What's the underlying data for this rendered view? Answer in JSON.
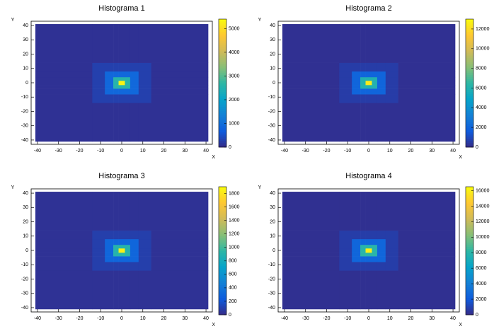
{
  "chart_data": [
    {
      "type": "heatmap",
      "title": "Histograma 1",
      "x_label": "X",
      "y_label": "Y",
      "xlim": [
        -43,
        43
      ],
      "ylim": [
        -43,
        43
      ],
      "xticks": [
        -40,
        -30,
        -20,
        -10,
        0,
        10,
        20,
        30,
        40
      ],
      "yticks": [
        -40,
        -30,
        -20,
        -10,
        0,
        10,
        20,
        30,
        40
      ],
      "xbins": [
        -41,
        -14,
        -8,
        -4,
        -1.5,
        1.5,
        4,
        8,
        14,
        41
      ],
      "ybins": [
        -41,
        -14,
        -8,
        -4,
        -1.5,
        1.5,
        4,
        8,
        14,
        41
      ],
      "zlim": [
        0,
        5400
      ],
      "zticks": [
        0,
        1000,
        2000,
        3000,
        4000,
        5000
      ],
      "colormap": [
        "#352a87",
        "#0f5cdd",
        "#1481d6",
        "#06a4ca",
        "#2eb7a4",
        "#87bf77",
        "#d1bb59",
        "#fec832",
        "#f9fb0e"
      ],
      "z": [
        [
          100,
          100,
          100,
          100,
          100,
          100,
          100,
          100,
          100
        ],
        [
          100,
          300,
          300,
          300,
          300,
          300,
          300,
          300,
          100
        ],
        [
          100,
          300,
          900,
          900,
          900,
          900,
          900,
          300,
          100
        ],
        [
          100,
          300,
          900,
          2600,
          2600,
          2600,
          900,
          300,
          100
        ],
        [
          100,
          300,
          900,
          2600,
          5300,
          2600,
          900,
          300,
          100
        ],
        [
          100,
          300,
          900,
          2600,
          2600,
          2600,
          900,
          300,
          100
        ],
        [
          100,
          300,
          900,
          900,
          900,
          900,
          900,
          300,
          100
        ],
        [
          100,
          300,
          300,
          300,
          300,
          300,
          300,
          300,
          100
        ],
        [
          100,
          100,
          100,
          100,
          100,
          100,
          100,
          100,
          100
        ]
      ]
    },
    {
      "type": "heatmap",
      "title": "Histograma 2",
      "x_label": "X",
      "y_label": "Y",
      "xlim": [
        -43,
        43
      ],
      "ylim": [
        -43,
        43
      ],
      "xticks": [
        -40,
        -30,
        -20,
        -10,
        0,
        10,
        20,
        30,
        40
      ],
      "yticks": [
        -40,
        -30,
        -20,
        -10,
        0,
        10,
        20,
        30,
        40
      ],
      "xbins": [
        -41,
        -14,
        -8,
        -4,
        -1.5,
        1.5,
        4,
        8,
        14,
        41
      ],
      "ybins": [
        -41,
        -14,
        -8,
        -4,
        -1.5,
        1.5,
        4,
        8,
        14,
        41
      ],
      "zlim": [
        0,
        13000
      ],
      "zticks": [
        0,
        2000,
        4000,
        6000,
        8000,
        10000,
        12000
      ],
      "colormap": [
        "#352a87",
        "#0f5cdd",
        "#1481d6",
        "#06a4ca",
        "#2eb7a4",
        "#87bf77",
        "#d1bb59",
        "#fec832",
        "#f9fb0e"
      ],
      "z": [
        [
          200,
          200,
          200,
          200,
          200,
          200,
          200,
          200,
          200
        ],
        [
          200,
          600,
          600,
          600,
          600,
          600,
          600,
          600,
          200
        ],
        [
          200,
          600,
          2000,
          2000,
          2000,
          2000,
          2000,
          600,
          200
        ],
        [
          200,
          600,
          2000,
          6000,
          6000,
          6000,
          2000,
          600,
          200
        ],
        [
          200,
          600,
          2000,
          6000,
          12500,
          6000,
          2000,
          600,
          200
        ],
        [
          200,
          600,
          2000,
          6000,
          6000,
          6000,
          2000,
          600,
          200
        ],
        [
          200,
          600,
          2000,
          2000,
          2000,
          2000,
          2000,
          600,
          200
        ],
        [
          200,
          600,
          600,
          600,
          600,
          600,
          600,
          600,
          200
        ],
        [
          200,
          200,
          200,
          200,
          200,
          200,
          200,
          200,
          200
        ]
      ]
    },
    {
      "type": "heatmap",
      "title": "Histograma 3",
      "x_label": "X",
      "y_label": "Y",
      "xlim": [
        -43,
        43
      ],
      "ylim": [
        -43,
        43
      ],
      "xticks": [
        -40,
        -30,
        -20,
        -10,
        0,
        10,
        20,
        30,
        40
      ],
      "yticks": [
        -40,
        -30,
        -20,
        -10,
        0,
        10,
        20,
        30,
        40
      ],
      "xbins": [
        -41,
        -14,
        -8,
        -4,
        -1.5,
        1.5,
        4,
        8,
        14,
        41
      ],
      "ybins": [
        -41,
        -14,
        -8,
        -4,
        -1.5,
        1.5,
        4,
        8,
        14,
        41
      ],
      "zlim": [
        0,
        1900
      ],
      "zticks": [
        0,
        200,
        400,
        600,
        800,
        1000,
        1200,
        1400,
        1600,
        1800
      ],
      "colormap": [
        "#352a87",
        "#0f5cdd",
        "#1481d6",
        "#06a4ca",
        "#2eb7a4",
        "#87bf77",
        "#d1bb59",
        "#fec832",
        "#f9fb0e"
      ],
      "z": [
        [
          40,
          40,
          40,
          40,
          40,
          40,
          40,
          40,
          40
        ],
        [
          40,
          100,
          100,
          100,
          100,
          100,
          100,
          100,
          40
        ],
        [
          40,
          100,
          300,
          300,
          300,
          300,
          300,
          100,
          40
        ],
        [
          40,
          100,
          300,
          900,
          900,
          900,
          300,
          100,
          40
        ],
        [
          40,
          100,
          300,
          900,
          1850,
          900,
          300,
          100,
          40
        ],
        [
          40,
          100,
          300,
          900,
          900,
          900,
          300,
          100,
          40
        ],
        [
          40,
          100,
          300,
          300,
          300,
          300,
          300,
          100,
          40
        ],
        [
          40,
          100,
          100,
          100,
          100,
          100,
          100,
          100,
          40
        ],
        [
          40,
          40,
          40,
          40,
          40,
          40,
          40,
          40,
          40
        ]
      ]
    },
    {
      "type": "heatmap",
      "title": "Histograma 4",
      "x_label": "X",
      "y_label": "Y",
      "xlim": [
        -43,
        43
      ],
      "ylim": [
        -43,
        43
      ],
      "xticks": [
        -40,
        -30,
        -20,
        -10,
        0,
        10,
        20,
        30,
        40
      ],
      "yticks": [
        -40,
        -30,
        -20,
        -10,
        0,
        10,
        20,
        30,
        40
      ],
      "xbins": [
        -41,
        -14,
        -8,
        -4,
        -1.5,
        1.5,
        4,
        8,
        14,
        41
      ],
      "ybins": [
        -41,
        -14,
        -8,
        -4,
        -1.5,
        1.5,
        4,
        8,
        14,
        41
      ],
      "zlim": [
        0,
        16500
      ],
      "zticks": [
        0,
        2000,
        4000,
        6000,
        8000,
        10000,
        12000,
        14000,
        16000
      ],
      "colormap": [
        "#352a87",
        "#0f5cdd",
        "#1481d6",
        "#06a4ca",
        "#2eb7a4",
        "#87bf77",
        "#d1bb59",
        "#fec832",
        "#f9fb0e"
      ],
      "z": [
        [
          250,
          250,
          250,
          250,
          250,
          250,
          250,
          250,
          250
        ],
        [
          250,
          800,
          800,
          800,
          800,
          800,
          800,
          800,
          250
        ],
        [
          250,
          800,
          2600,
          2600,
          2600,
          2600,
          2600,
          800,
          250
        ],
        [
          250,
          800,
          2600,
          8000,
          8000,
          8000,
          2600,
          800,
          250
        ],
        [
          250,
          800,
          2600,
          8000,
          16000,
          8000,
          2600,
          800,
          250
        ],
        [
          250,
          800,
          2600,
          8000,
          8000,
          8000,
          2600,
          800,
          250
        ],
        [
          250,
          800,
          2600,
          2600,
          2600,
          2600,
          2600,
          800,
          250
        ],
        [
          250,
          800,
          800,
          800,
          800,
          800,
          800,
          800,
          250
        ],
        [
          250,
          250,
          250,
          250,
          250,
          250,
          250,
          250,
          250
        ]
      ]
    }
  ]
}
